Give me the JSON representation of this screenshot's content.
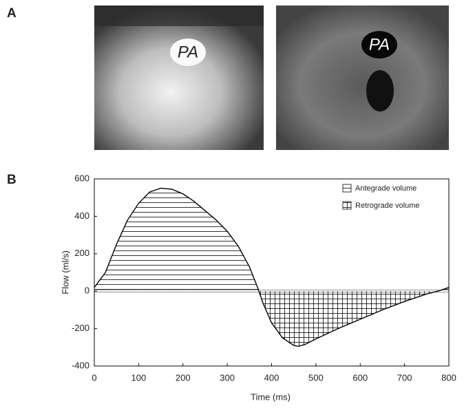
{
  "panels": [
    "A",
    "B"
  ],
  "images": [
    {
      "label": "PA"
    },
    {
      "label": "PA"
    }
  ],
  "chart_data": {
    "type": "line",
    "x": [
      0,
      25,
      50,
      75,
      100,
      125,
      150,
      175,
      200,
      225,
      250,
      275,
      300,
      325,
      350,
      370,
      380,
      400,
      425,
      450,
      460,
      475,
      500,
      550,
      600,
      650,
      700,
      750,
      775,
      800
    ],
    "values": [
      20,
      100,
      250,
      380,
      470,
      530,
      550,
      545,
      520,
      480,
      430,
      380,
      320,
      240,
      130,
      10,
      -60,
      -170,
      -250,
      -290,
      -295,
      -285,
      -255,
      -200,
      -150,
      -100,
      -55,
      -15,
      0,
      20
    ],
    "color": "#000000",
    "xlim": [
      0,
      800
    ],
    "xticks": [
      0,
      100,
      200,
      300,
      400,
      500,
      600,
      700,
      800
    ],
    "ylim": [
      -400,
      600
    ],
    "yticks": [
      -400,
      -200,
      0,
      200,
      400,
      600
    ],
    "xlabel": "Time (ms)",
    "ylabel": "Flow (ml/s)",
    "legend": [
      "Antegrade volume",
      "Retrograde volume"
    ]
  }
}
